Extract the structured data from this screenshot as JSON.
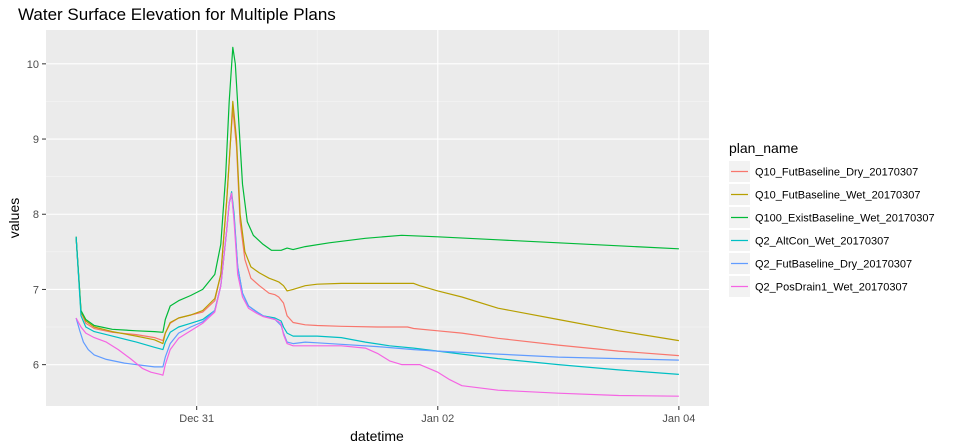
{
  "chart_data": {
    "type": "line",
    "title": "Water Surface Elevation for Multiple Plans",
    "xlabel": "datetime",
    "ylabel": "values",
    "x_unit": "days",
    "x_ticks": [
      {
        "x": 1.0,
        "label": "Dec 31"
      },
      {
        "x": 3.0,
        "label": "Jan 02"
      },
      {
        "x": 5.0,
        "label": "Jan 04"
      }
    ],
    "y_ticks": [
      6,
      7,
      8,
      9,
      10
    ],
    "xlim": [
      -0.25,
      5.25
    ],
    "ylim": [
      5.45,
      10.45
    ],
    "grid": true,
    "legend_title": "plan_name",
    "legend_position": "right",
    "series": [
      {
        "name": "Q10_FutBaseline_Dry_20170307",
        "color": "#F8766D",
        "points": [
          [
            0,
            7.7
          ],
          [
            0.04,
            6.7
          ],
          [
            0.08,
            6.55
          ],
          [
            0.15,
            6.48
          ],
          [
            0.3,
            6.43
          ],
          [
            0.5,
            6.4
          ],
          [
            0.65,
            6.36
          ],
          [
            0.72,
            6.32
          ],
          [
            0.74,
            6.42
          ],
          [
            0.78,
            6.55
          ],
          [
            0.85,
            6.62
          ],
          [
            0.95,
            6.66
          ],
          [
            1.05,
            6.7
          ],
          [
            1.15,
            6.85
          ],
          [
            1.2,
            7.2
          ],
          [
            1.25,
            8.2
          ],
          [
            1.28,
            8.95
          ],
          [
            1.3,
            9.4
          ],
          [
            1.33,
            8.9
          ],
          [
            1.36,
            7.9
          ],
          [
            1.4,
            7.4
          ],
          [
            1.45,
            7.15
          ],
          [
            1.52,
            7.05
          ],
          [
            1.6,
            6.95
          ],
          [
            1.65,
            6.93
          ],
          [
            1.68,
            6.9
          ],
          [
            1.72,
            6.82
          ],
          [
            1.75,
            6.65
          ],
          [
            1.8,
            6.56
          ],
          [
            1.9,
            6.53
          ],
          [
            2.0,
            6.52
          ],
          [
            2.2,
            6.51
          ],
          [
            2.5,
            6.5
          ],
          [
            2.75,
            6.5
          ],
          [
            2.8,
            6.48
          ],
          [
            3.0,
            6.45
          ],
          [
            3.2,
            6.42
          ],
          [
            3.5,
            6.35
          ],
          [
            4.0,
            6.26
          ],
          [
            4.5,
            6.18
          ],
          [
            5.0,
            6.12
          ]
        ]
      },
      {
        "name": "Q10_FutBaseline_Wet_20170307",
        "color": "#B79F00",
        "points": [
          [
            0,
            7.7
          ],
          [
            0.04,
            6.7
          ],
          [
            0.08,
            6.58
          ],
          [
            0.15,
            6.5
          ],
          [
            0.3,
            6.44
          ],
          [
            0.5,
            6.38
          ],
          [
            0.65,
            6.33
          ],
          [
            0.72,
            6.28
          ],
          [
            0.74,
            6.42
          ],
          [
            0.78,
            6.56
          ],
          [
            0.85,
            6.62
          ],
          [
            0.95,
            6.66
          ],
          [
            1.05,
            6.72
          ],
          [
            1.15,
            6.88
          ],
          [
            1.2,
            7.2
          ],
          [
            1.25,
            8.2
          ],
          [
            1.28,
            8.95
          ],
          [
            1.3,
            9.5
          ],
          [
            1.33,
            9.0
          ],
          [
            1.36,
            8.0
          ],
          [
            1.4,
            7.5
          ],
          [
            1.45,
            7.3
          ],
          [
            1.52,
            7.22
          ],
          [
            1.6,
            7.15
          ],
          [
            1.65,
            7.12
          ],
          [
            1.68,
            7.1
          ],
          [
            1.72,
            7.05
          ],
          [
            1.75,
            6.98
          ],
          [
            1.8,
            7.0
          ],
          [
            1.9,
            7.05
          ],
          [
            2.0,
            7.07
          ],
          [
            2.2,
            7.08
          ],
          [
            2.5,
            7.08
          ],
          [
            2.8,
            7.08
          ],
          [
            2.85,
            7.05
          ],
          [
            3.0,
            6.98
          ],
          [
            3.2,
            6.9
          ],
          [
            3.5,
            6.75
          ],
          [
            4.0,
            6.6
          ],
          [
            4.5,
            6.45
          ],
          [
            5.0,
            6.32
          ]
        ]
      },
      {
        "name": "Q100_ExistBaseline_Wet_20170307",
        "color": "#00BA38",
        "points": [
          [
            0,
            7.7
          ],
          [
            0.04,
            6.72
          ],
          [
            0.08,
            6.6
          ],
          [
            0.15,
            6.52
          ],
          [
            0.3,
            6.47
          ],
          [
            0.5,
            6.45
          ],
          [
            0.65,
            6.44
          ],
          [
            0.72,
            6.43
          ],
          [
            0.74,
            6.6
          ],
          [
            0.78,
            6.78
          ],
          [
            0.85,
            6.85
          ],
          [
            0.95,
            6.92
          ],
          [
            1.05,
            7.0
          ],
          [
            1.15,
            7.2
          ],
          [
            1.2,
            7.6
          ],
          [
            1.24,
            8.5
          ],
          [
            1.27,
            9.5
          ],
          [
            1.3,
            10.22
          ],
          [
            1.32,
            10.0
          ],
          [
            1.35,
            9.2
          ],
          [
            1.38,
            8.4
          ],
          [
            1.42,
            7.9
          ],
          [
            1.47,
            7.72
          ],
          [
            1.55,
            7.6
          ],
          [
            1.62,
            7.52
          ],
          [
            1.7,
            7.52
          ],
          [
            1.75,
            7.55
          ],
          [
            1.8,
            7.53
          ],
          [
            1.9,
            7.57
          ],
          [
            2.1,
            7.62
          ],
          [
            2.4,
            7.68
          ],
          [
            2.7,
            7.72
          ],
          [
            3.0,
            7.7
          ],
          [
            3.5,
            7.66
          ],
          [
            4.0,
            7.62
          ],
          [
            4.5,
            7.58
          ],
          [
            5.0,
            7.54
          ]
        ]
      },
      {
        "name": "Q2_AltCon_Wet_20170307",
        "color": "#00BFC4",
        "points": [
          [
            0,
            7.7
          ],
          [
            0.04,
            6.65
          ],
          [
            0.08,
            6.5
          ],
          [
            0.15,
            6.44
          ],
          [
            0.3,
            6.38
          ],
          [
            0.5,
            6.3
          ],
          [
            0.65,
            6.23
          ],
          [
            0.72,
            6.2
          ],
          [
            0.74,
            6.3
          ],
          [
            0.78,
            6.43
          ],
          [
            0.85,
            6.5
          ],
          [
            0.95,
            6.55
          ],
          [
            1.05,
            6.6
          ],
          [
            1.15,
            6.72
          ],
          [
            1.2,
            7.05
          ],
          [
            1.25,
            7.8
          ],
          [
            1.27,
            8.15
          ],
          [
            1.29,
            8.3
          ],
          [
            1.31,
            8.0
          ],
          [
            1.34,
            7.3
          ],
          [
            1.38,
            6.95
          ],
          [
            1.43,
            6.78
          ],
          [
            1.5,
            6.7
          ],
          [
            1.55,
            6.65
          ],
          [
            1.65,
            6.62
          ],
          [
            1.7,
            6.58
          ],
          [
            1.72,
            6.5
          ],
          [
            1.75,
            6.42
          ],
          [
            1.8,
            6.38
          ],
          [
            1.9,
            6.38
          ],
          [
            2.0,
            6.38
          ],
          [
            2.2,
            6.36
          ],
          [
            2.4,
            6.3
          ],
          [
            2.6,
            6.25
          ],
          [
            2.8,
            6.22
          ],
          [
            3.0,
            6.18
          ],
          [
            3.5,
            6.08
          ],
          [
            4.0,
            6.0
          ],
          [
            4.5,
            5.93
          ],
          [
            5.0,
            5.87
          ]
        ]
      },
      {
        "name": "Q2_FutBaseline_Dry_20170307",
        "color": "#619CFF",
        "points": [
          [
            0,
            6.62
          ],
          [
            0.03,
            6.45
          ],
          [
            0.06,
            6.3
          ],
          [
            0.1,
            6.2
          ],
          [
            0.15,
            6.13
          ],
          [
            0.25,
            6.07
          ],
          [
            0.4,
            6.02
          ],
          [
            0.55,
            5.99
          ],
          [
            0.65,
            5.97
          ],
          [
            0.72,
            5.97
          ],
          [
            0.74,
            6.1
          ],
          [
            0.78,
            6.28
          ],
          [
            0.85,
            6.42
          ],
          [
            0.95,
            6.5
          ],
          [
            1.05,
            6.57
          ],
          [
            1.15,
            6.72
          ],
          [
            1.2,
            7.05
          ],
          [
            1.25,
            7.8
          ],
          [
            1.27,
            8.15
          ],
          [
            1.29,
            8.25
          ],
          [
            1.31,
            7.95
          ],
          [
            1.34,
            7.3
          ],
          [
            1.38,
            6.95
          ],
          [
            1.43,
            6.78
          ],
          [
            1.5,
            6.7
          ],
          [
            1.55,
            6.65
          ],
          [
            1.65,
            6.6
          ],
          [
            1.7,
            6.52
          ],
          [
            1.72,
            6.42
          ],
          [
            1.75,
            6.3
          ],
          [
            1.8,
            6.28
          ],
          [
            1.9,
            6.3
          ],
          [
            2.0,
            6.29
          ],
          [
            2.2,
            6.27
          ],
          [
            2.5,
            6.24
          ],
          [
            2.8,
            6.2
          ],
          [
            3.0,
            6.18
          ],
          [
            3.5,
            6.14
          ],
          [
            4.0,
            6.1
          ],
          [
            4.5,
            6.08
          ],
          [
            5.0,
            6.06
          ]
        ]
      },
      {
        "name": "Q2_PosDrain1_Wet_20170307",
        "color": "#F564E3",
        "points": [
          [
            0,
            6.62
          ],
          [
            0.04,
            6.5
          ],
          [
            0.08,
            6.42
          ],
          [
            0.15,
            6.36
          ],
          [
            0.25,
            6.3
          ],
          [
            0.35,
            6.2
          ],
          [
            0.45,
            6.08
          ],
          [
            0.55,
            5.95
          ],
          [
            0.62,
            5.9
          ],
          [
            0.7,
            5.87
          ],
          [
            0.72,
            5.86
          ],
          [
            0.74,
            6.0
          ],
          [
            0.78,
            6.2
          ],
          [
            0.85,
            6.35
          ],
          [
            0.95,
            6.45
          ],
          [
            1.05,
            6.55
          ],
          [
            1.15,
            6.7
          ],
          [
            1.2,
            7.05
          ],
          [
            1.25,
            7.8
          ],
          [
            1.27,
            8.15
          ],
          [
            1.29,
            8.28
          ],
          [
            1.31,
            7.9
          ],
          [
            1.34,
            7.2
          ],
          [
            1.38,
            6.9
          ],
          [
            1.43,
            6.75
          ],
          [
            1.5,
            6.68
          ],
          [
            1.55,
            6.64
          ],
          [
            1.65,
            6.6
          ],
          [
            1.7,
            6.55
          ],
          [
            1.72,
            6.4
          ],
          [
            1.75,
            6.28
          ],
          [
            1.8,
            6.25
          ],
          [
            1.9,
            6.25
          ],
          [
            2.0,
            6.25
          ],
          [
            2.2,
            6.25
          ],
          [
            2.4,
            6.22
          ],
          [
            2.5,
            6.15
          ],
          [
            2.6,
            6.05
          ],
          [
            2.7,
            6.0
          ],
          [
            2.85,
            6.0
          ],
          [
            3.0,
            5.9
          ],
          [
            3.1,
            5.8
          ],
          [
            3.2,
            5.72
          ],
          [
            3.5,
            5.66
          ],
          [
            4.0,
            5.62
          ],
          [
            4.5,
            5.59
          ],
          [
            5.0,
            5.58
          ]
        ]
      }
    ]
  }
}
